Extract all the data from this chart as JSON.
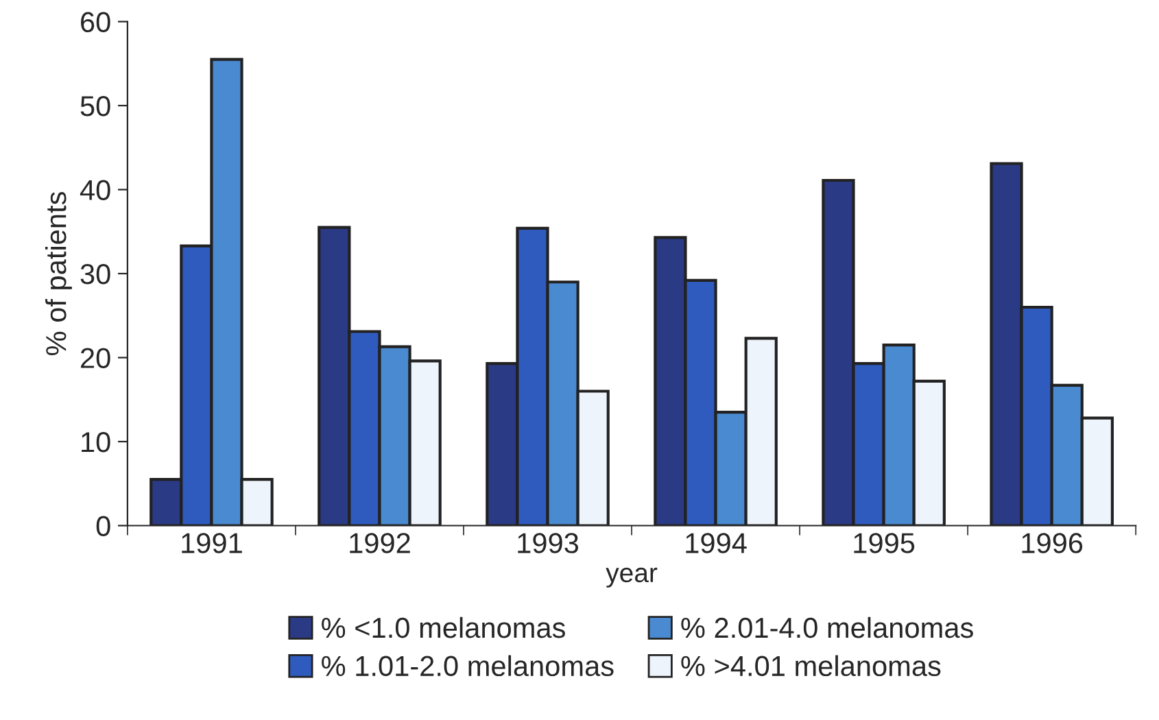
{
  "chart_data": {
    "type": "bar",
    "xlabel": "year",
    "ylabel": "% of patients",
    "categories": [
      "1991",
      "1992",
      "1993",
      "1994",
      "1995",
      "1996"
    ],
    "series": [
      {
        "name": "% <1.0 melanomas",
        "color": "#2b3a85",
        "values": [
          5.5,
          35.5,
          19.3,
          34.3,
          41.1,
          43.1
        ]
      },
      {
        "name": "% 1.01-2.0 melanomas",
        "color": "#2f5bbf",
        "values": [
          33.3,
          23.1,
          35.4,
          29.2,
          19.3,
          26.0
        ]
      },
      {
        "name": "% 2.01-4.0 melanomas",
        "color": "#4a8ad0",
        "values": [
          55.5,
          21.3,
          29.0,
          13.5,
          21.5,
          16.7
        ]
      },
      {
        "name": "% >4.01 melanomas",
        "color": "#eef4fc",
        "values": [
          5.5,
          19.6,
          16.0,
          22.3,
          17.2,
          12.8
        ]
      }
    ],
    "ylim": [
      0,
      60
    ],
    "yticks": [
      0,
      10,
      20,
      30,
      40,
      50,
      60
    ],
    "grid": false,
    "legend": "bottom"
  }
}
